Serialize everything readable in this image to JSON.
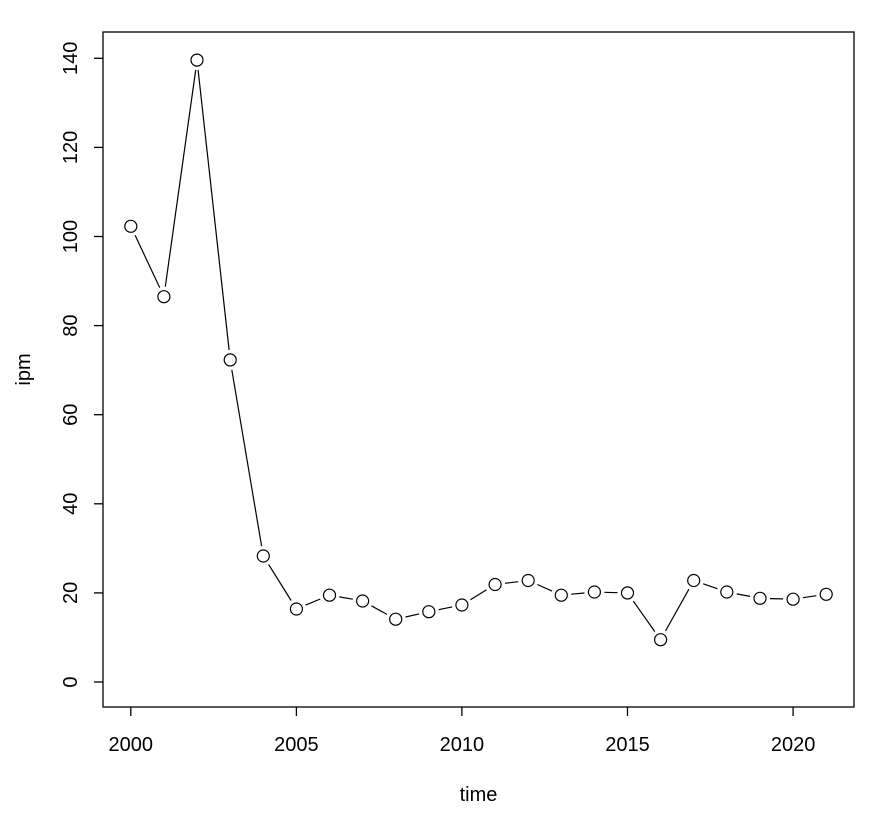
{
  "figure": {
    "background": "#ffffff",
    "foreground": "#000000"
  },
  "chart_data": {
    "type": "line",
    "title": "",
    "xlabel": "time",
    "ylabel": "ipm",
    "x": [
      2000,
      2001,
      2002,
      2003,
      2004,
      2005,
      2006,
      2007,
      2008,
      2009,
      2010,
      2011,
      2012,
      2013,
      2014,
      2015,
      2016,
      2017,
      2018,
      2019,
      2020,
      2021
    ],
    "series": [
      {
        "name": "ipm",
        "marker": "open-circle",
        "line_style": "solid-with-gaps",
        "color": "#000000",
        "values": [
          102.3,
          86.5,
          139.6,
          72.3,
          28.3,
          16.4,
          19.5,
          18.2,
          14.1,
          15.8,
          17.3,
          21.9,
          22.8,
          19.5,
          20.2,
          20.0,
          9.5,
          22.8,
          20.2,
          18.8,
          18.6,
          19.7
        ]
      }
    ],
    "xticks": [
      2000,
      2005,
      2010,
      2015,
      2020
    ],
    "yticks": [
      0,
      20,
      40,
      60,
      80,
      100,
      120,
      140
    ],
    "xlim": [
      1999.16,
      2021.84
    ],
    "ylim": [
      -5.6,
      145.9
    ],
    "grid": false,
    "legend": false,
    "box": true
  }
}
